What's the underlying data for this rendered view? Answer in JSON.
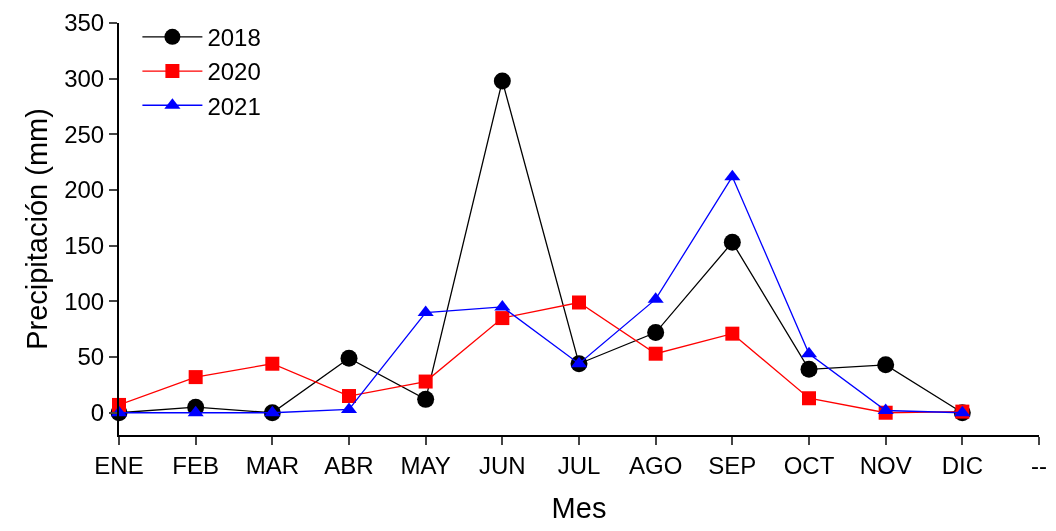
{
  "chart_data": {
    "type": "line",
    "xlabel": "Mes",
    "ylabel": "Precipitación (mm)",
    "categories": [
      "ENE",
      "FEB",
      "MAR",
      "ABR",
      "MAY",
      "JUN",
      "JUL",
      "AGO",
      "SEP",
      "OCT",
      "NOV",
      "DIC",
      "--"
    ],
    "series": [
      {
        "name": "2018",
        "color": "#000000",
        "marker": "circle",
        "values": [
          0,
          5,
          0,
          49,
          12,
          298,
          44,
          72,
          153,
          39,
          43,
          0,
          null
        ]
      },
      {
        "name": "2020",
        "color": "#ff0000",
        "marker": "square",
        "values": [
          7,
          32,
          44,
          15,
          28,
          85,
          99,
          53,
          71,
          13,
          0,
          1,
          null
        ]
      },
      {
        "name": "2021",
        "color": "#0000ff",
        "marker": "triangle",
        "values": [
          0,
          0,
          0,
          3,
          90,
          95,
          44,
          102,
          212,
          53,
          2,
          0,
          null
        ]
      }
    ],
    "ylim": [
      -20,
      350
    ],
    "yticks": [
      0,
      50,
      100,
      150,
      200,
      250,
      300,
      350
    ],
    "grid": false,
    "legend": "top left",
    "line_style": "solid"
  }
}
